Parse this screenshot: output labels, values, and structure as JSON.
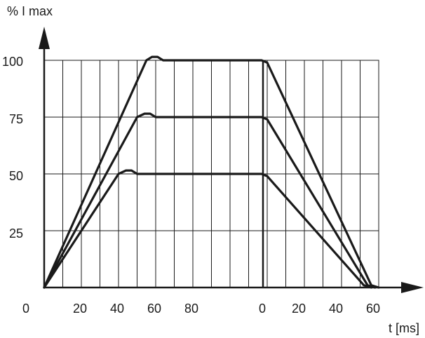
{
  "chart_data": {
    "type": "line",
    "ylabel": "% I max",
    "xlabel": "t [ms]",
    "y_ticks": [
      "100",
      "75",
      "50",
      "25"
    ],
    "x_ticks": [
      "0",
      "20",
      "40",
      "60",
      "80",
      "0",
      "20",
      "40",
      "60"
    ],
    "ylim": [
      0,
      100
    ],
    "grid": true,
    "series": [
      {
        "values": [
          [
            0,
            0
          ],
          [
            55,
            100
          ],
          [
            58,
            101.5
          ],
          [
            61,
            101.5
          ],
          [
            64,
            100
          ],
          [
            117,
            100
          ],
          [
            120,
            99
          ],
          [
            176,
            1
          ],
          [
            180,
            0
          ]
        ]
      },
      {
        "values": [
          [
            0,
            0
          ],
          [
            50,
            75
          ],
          [
            54,
            76.5
          ],
          [
            57,
            76.5
          ],
          [
            60,
            75
          ],
          [
            117,
            75
          ],
          [
            120,
            74
          ],
          [
            174,
            1
          ],
          [
            178,
            0
          ]
        ]
      },
      {
        "values": [
          [
            0,
            0
          ],
          [
            40,
            50
          ],
          [
            44,
            51.5
          ],
          [
            47,
            51.5
          ],
          [
            50,
            50
          ],
          [
            117,
            50
          ],
          [
            120,
            49
          ],
          [
            172,
            1
          ],
          [
            176,
            0
          ]
        ]
      }
    ]
  }
}
